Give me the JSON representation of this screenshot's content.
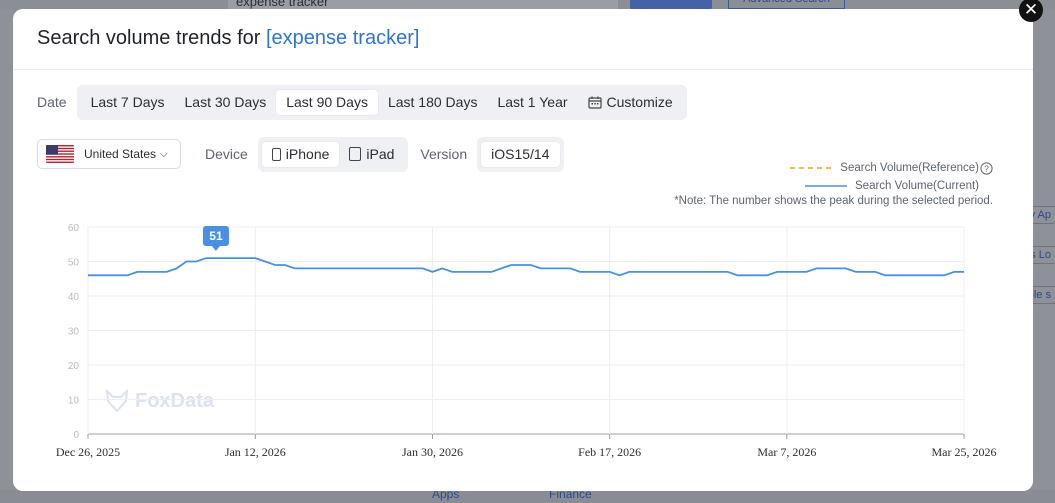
{
  "background": {
    "search_text": "expense tracker",
    "advanced_search": "Advanced Search",
    "side_links": [
      "v Ap",
      "os Lo",
      "ole s"
    ],
    "bottom_links": [
      "Apps",
      "Finance"
    ]
  },
  "modal": {
    "title_prefix": "Search volume trends for ",
    "keyword": "[expense tracker]",
    "close_icon": "close-icon"
  },
  "date": {
    "label": "Date",
    "options": [
      "Last 7 Days",
      "Last 30 Days",
      "Last 90 Days",
      "Last 180 Days",
      "Last 1 Year",
      "Customize"
    ],
    "selected": "Last 90 Days"
  },
  "filters": {
    "country": "United States",
    "device_label": "Device",
    "devices": [
      "iPhone",
      "iPad"
    ],
    "selected_device": "iPhone",
    "version_label": "Version",
    "version": "iOS15/14"
  },
  "legend": {
    "reference": "Search Volume(Reference)",
    "current": "Search Volume(Current)",
    "reference_color": "#f0a020",
    "current_color": "#4a90e2",
    "note": "*Note: The number shows the peak during the selected period."
  },
  "watermark": "FoxData",
  "chart_data": {
    "type": "line",
    "x_ticks": [
      "Dec 26, 2025",
      "Jan 12, 2026",
      "Jan 30, 2026",
      "Feb 17, 2026",
      "Mar 7, 2026",
      "Mar 25, 2026"
    ],
    "x_range": [
      "Dec 26, 2025",
      "Mar 25, 2026"
    ],
    "ylim": [
      0,
      60
    ],
    "y_ticks": [
      0,
      10,
      20,
      30,
      40,
      50,
      60
    ],
    "grid": true,
    "peak_label": "51",
    "peak_value": 51,
    "peak_date": "Jan 8, 2026",
    "series": [
      {
        "name": "Search Volume(Current)",
        "color": "#4a90e2",
        "x": [
          "2025-12-26",
          "2025-12-27",
          "2025-12-28",
          "2025-12-29",
          "2025-12-30",
          "2025-12-31",
          "2026-01-01",
          "2026-01-02",
          "2026-01-03",
          "2026-01-04",
          "2026-01-05",
          "2026-01-06",
          "2026-01-07",
          "2026-01-08",
          "2026-01-09",
          "2026-01-10",
          "2026-01-11",
          "2026-01-12",
          "2026-01-13",
          "2026-01-14",
          "2026-01-15",
          "2026-01-16",
          "2026-01-17",
          "2026-01-18",
          "2026-01-19",
          "2026-01-20",
          "2026-01-21",
          "2026-01-22",
          "2026-01-23",
          "2026-01-24",
          "2026-01-25",
          "2026-01-26",
          "2026-01-27",
          "2026-01-28",
          "2026-01-29",
          "2026-01-30",
          "2026-01-31",
          "2026-02-01",
          "2026-02-02",
          "2026-02-03",
          "2026-02-04",
          "2026-02-05",
          "2026-02-06",
          "2026-02-07",
          "2026-02-08",
          "2026-02-09",
          "2026-02-10",
          "2026-02-11",
          "2026-02-12",
          "2026-02-13",
          "2026-02-14",
          "2026-02-15",
          "2026-02-16",
          "2026-02-17",
          "2026-02-18",
          "2026-02-19",
          "2026-02-20",
          "2026-02-21",
          "2026-02-22",
          "2026-02-23",
          "2026-02-24",
          "2026-02-25",
          "2026-02-26",
          "2026-02-27",
          "2026-02-28",
          "2026-03-01",
          "2026-03-02",
          "2026-03-03",
          "2026-03-04",
          "2026-03-05",
          "2026-03-06",
          "2026-03-07",
          "2026-03-08",
          "2026-03-09",
          "2026-03-10",
          "2026-03-11",
          "2026-03-12",
          "2026-03-13",
          "2026-03-14",
          "2026-03-15",
          "2026-03-16",
          "2026-03-17",
          "2026-03-18",
          "2026-03-19",
          "2026-03-20",
          "2026-03-21",
          "2026-03-22",
          "2026-03-23",
          "2026-03-24",
          "2026-03-25"
        ],
        "values": [
          46,
          46,
          46,
          46,
          46,
          47,
          47,
          47,
          47,
          48,
          50,
          50,
          51,
          51,
          51,
          51,
          51,
          51,
          50,
          49,
          49,
          48,
          48,
          48,
          48,
          48,
          48,
          48,
          48,
          48,
          48,
          48,
          48,
          48,
          48,
          47,
          48,
          47,
          47,
          47,
          47,
          47,
          48,
          49,
          49,
          49,
          48,
          48,
          48,
          48,
          47,
          47,
          47,
          47,
          46,
          47,
          47,
          47,
          47,
          47,
          47,
          47,
          47,
          47,
          47,
          47,
          46,
          46,
          46,
          46,
          47,
          47,
          47,
          47,
          48,
          48,
          48,
          48,
          47,
          47,
          47,
          46,
          46,
          46,
          46,
          46,
          46,
          46,
          47,
          47
        ]
      },
      {
        "name": "Search Volume(Reference)",
        "color": "#f0a020",
        "values": []
      }
    ]
  }
}
